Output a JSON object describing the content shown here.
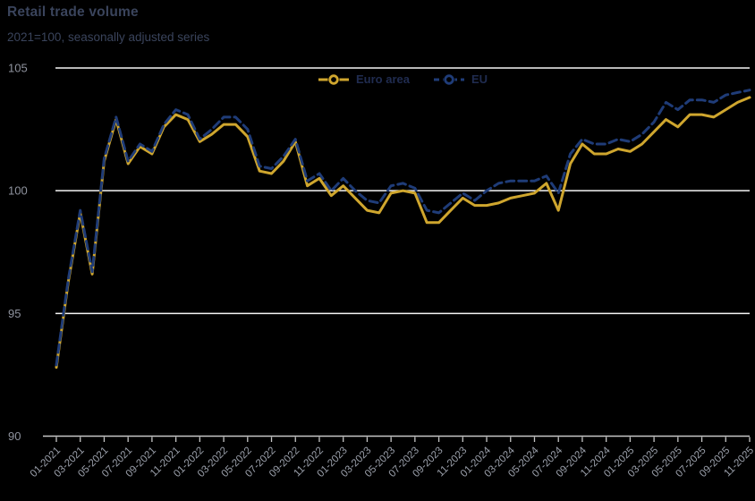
{
  "colors": {
    "background": "#000000",
    "grid": "#f5f5f5",
    "axis": "#c6c6c6",
    "axis_label": "#8f939e",
    "tick_label": "#9ba0ab",
    "text": "#3a445c",
    "legend_text": "#202c50"
  },
  "legend": [
    {
      "label": "Euro area"
    },
    {
      "label": "EU"
    }
  ],
  "chart_data": {
    "type": "line",
    "title": "Retail trade volume",
    "subtitle": "2021=100, seasonally adjusted series",
    "grid": true,
    "legend_position": "top-center",
    "ylim": [
      90,
      105
    ],
    "yticks": [
      90,
      95,
      100,
      105
    ],
    "x_tick_every": 2,
    "x": [
      "01-2021",
      "02-2021",
      "03-2021",
      "04-2021",
      "05-2021",
      "06-2021",
      "07-2021",
      "08-2021",
      "09-2021",
      "10-2021",
      "11-2021",
      "12-2021",
      "01-2022",
      "02-2022",
      "03-2022",
      "04-2022",
      "05-2022",
      "06-2022",
      "07-2022",
      "08-2022",
      "09-2022",
      "10-2022",
      "11-2022",
      "12-2022",
      "01-2023",
      "02-2023",
      "03-2023",
      "04-2023",
      "05-2023",
      "06-2023",
      "07-2023",
      "08-2023",
      "09-2023",
      "10-2023",
      "11-2023",
      "12-2023",
      "01-2024",
      "02-2024",
      "03-2024",
      "04-2024",
      "05-2024",
      "06-2024",
      "07-2024",
      "08-2024",
      "09-2024",
      "10-2024",
      "11-2024",
      "12-2024",
      "01-2025",
      "02-2025",
      "03-2025",
      "04-2025",
      "05-2025",
      "06-2025",
      "07-2025",
      "08-2025",
      "09-2025",
      "10-2025",
      "11-2025"
    ],
    "series": [
      {
        "name": "Euro area",
        "color": "#cfa62e",
        "style": "solid",
        "values": [
          92.8,
          96.3,
          99.1,
          96.6,
          101.2,
          102.9,
          101.1,
          101.8,
          101.5,
          102.6,
          103.1,
          102.9,
          102.0,
          102.3,
          102.7,
          102.7,
          102.2,
          100.8,
          100.7,
          101.2,
          102.0,
          100.2,
          100.5,
          99.8,
          100.2,
          99.7,
          99.2,
          99.1,
          99.9,
          100.0,
          99.9,
          98.7,
          98.7,
          99.2,
          99.7,
          99.4,
          99.4,
          99.5,
          99.7,
          99.8,
          99.9,
          100.3,
          99.2,
          101.1,
          101.9,
          101.5,
          101.5,
          101.7,
          101.6,
          101.9,
          102.4,
          102.9,
          102.6,
          103.1,
          103.1,
          103.0,
          103.3,
          103.6,
          103.8
        ]
      },
      {
        "name": "EU",
        "color": "#1f3c78",
        "style": "dashed",
        "values": [
          92.9,
          96.4,
          99.2,
          96.7,
          101.3,
          103.0,
          101.2,
          101.9,
          101.6,
          102.7,
          103.3,
          103.1,
          102.1,
          102.5,
          103.0,
          103.0,
          102.5,
          101.0,
          100.9,
          101.4,
          102.1,
          100.4,
          100.7,
          100.0,
          100.5,
          100.0,
          99.6,
          99.5,
          100.2,
          100.3,
          100.1,
          99.2,
          99.1,
          99.5,
          99.9,
          99.6,
          100.0,
          100.3,
          100.4,
          100.4,
          100.4,
          100.6,
          99.9,
          101.5,
          102.1,
          101.9,
          101.9,
          102.1,
          102.0,
          102.3,
          102.8,
          103.6,
          103.3,
          103.7,
          103.7,
          103.6,
          103.9,
          104.0,
          104.1
        ]
      }
    ]
  }
}
